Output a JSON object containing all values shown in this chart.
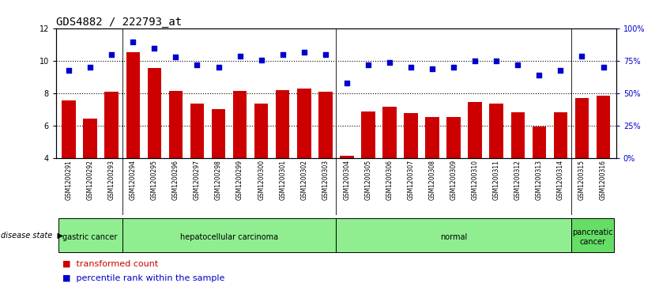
{
  "title": "GDS4882 / 222793_at",
  "samples": [
    "GSM1200291",
    "GSM1200292",
    "GSM1200293",
    "GSM1200294",
    "GSM1200295",
    "GSM1200296",
    "GSM1200297",
    "GSM1200298",
    "GSM1200299",
    "GSM1200300",
    "GSM1200301",
    "GSM1200302",
    "GSM1200303",
    "GSM1200304",
    "GSM1200305",
    "GSM1200306",
    "GSM1200307",
    "GSM1200308",
    "GSM1200309",
    "GSM1200310",
    "GSM1200311",
    "GSM1200312",
    "GSM1200313",
    "GSM1200314",
    "GSM1200315",
    "GSM1200316"
  ],
  "transformed_count": [
    7.55,
    6.45,
    8.1,
    10.55,
    9.55,
    8.15,
    7.35,
    7.0,
    8.15,
    7.35,
    8.2,
    8.3,
    8.1,
    4.15,
    6.85,
    7.15,
    6.75,
    6.55,
    6.55,
    7.45,
    7.35,
    6.8,
    5.95,
    6.8,
    7.7,
    7.85
  ],
  "percentile_rank": [
    68,
    70,
    80,
    90,
    85,
    78,
    72,
    70,
    79,
    76,
    80,
    82,
    80,
    58,
    72,
    74,
    70,
    69,
    70,
    75,
    75,
    72,
    64,
    68,
    79,
    70
  ],
  "groups": [
    {
      "label": "gastric cancer",
      "start": 0,
      "end": 3,
      "color": "#90EE90"
    },
    {
      "label": "hepatocellular carcinoma",
      "start": 3,
      "end": 13,
      "color": "#90EE90"
    },
    {
      "label": "normal",
      "start": 13,
      "end": 24,
      "color": "#90EE90"
    },
    {
      "label": "pancreatic\ncancer",
      "start": 24,
      "end": 26,
      "color": "#66DD66"
    }
  ],
  "bar_color": "#CC0000",
  "dot_color": "#0000CC",
  "ylim_left": [
    4,
    12
  ],
  "ylim_right": [
    0,
    100
  ],
  "yticks_left": [
    4,
    6,
    8,
    10,
    12
  ],
  "yticks_right": [
    0,
    25,
    50,
    75,
    100
  ],
  "ytick_right_labels": [
    "0%",
    "25%",
    "50%",
    "75%",
    "100%"
  ],
  "hgrid_vals": [
    6,
    8,
    10
  ],
  "bar_color_legend": "#CC0000",
  "dot_color_legend": "#0000CC",
  "legend_labels": [
    "transformed count",
    "percentile rank within the sample"
  ],
  "title_fontsize": 10,
  "tick_fontsize": 7,
  "sample_fontsize": 5.5,
  "group_fontsize": 7,
  "legend_fontsize": 8
}
